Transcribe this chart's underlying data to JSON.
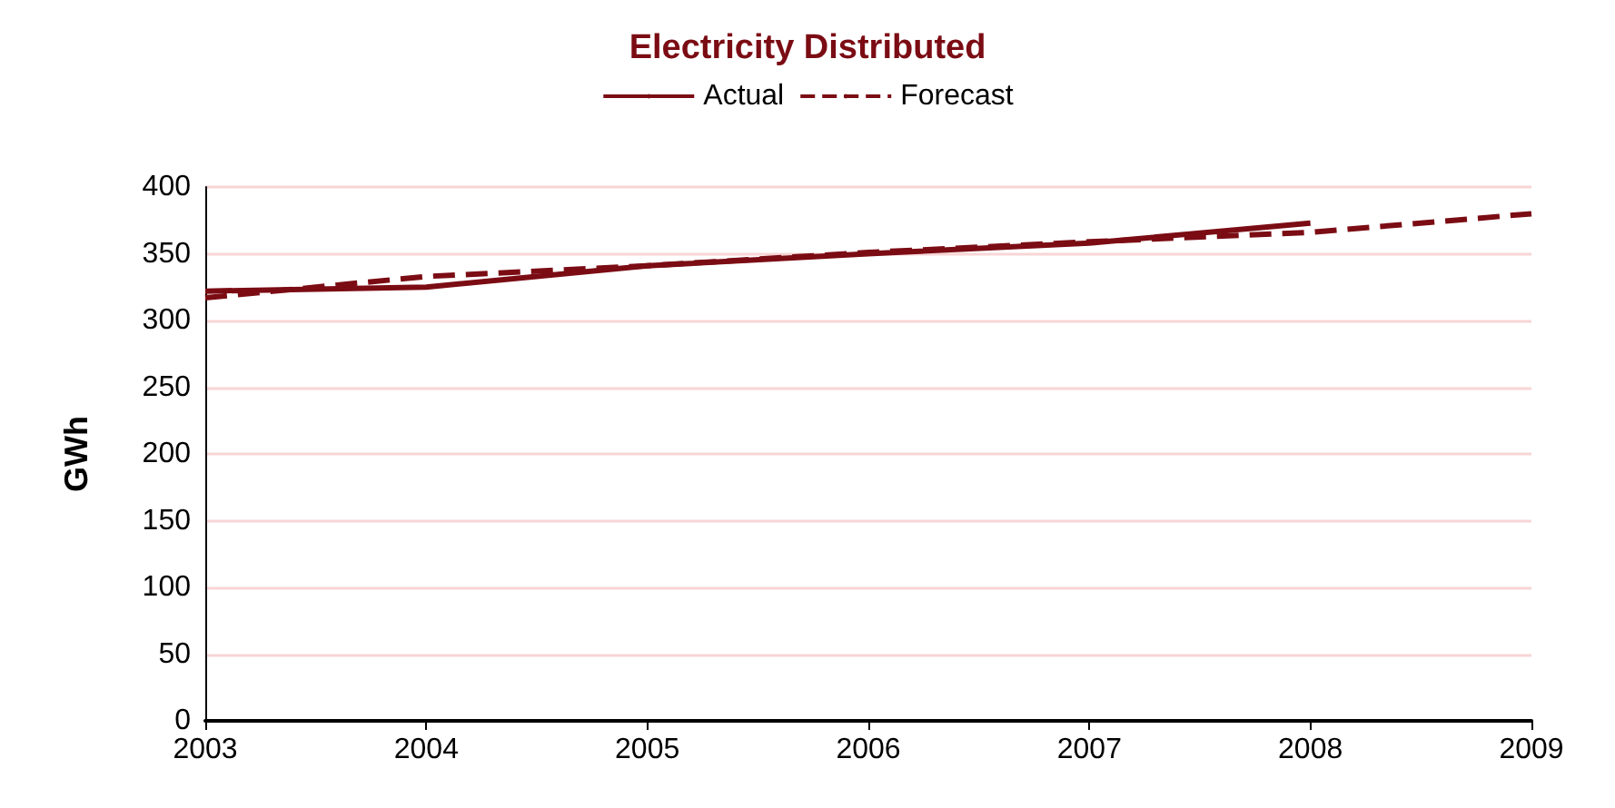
{
  "chart_data": {
    "type": "line",
    "title": "Electricity Distributed",
    "ylabel": "GWh",
    "x": [
      2003,
      2004,
      2005,
      2006,
      2007,
      2008
    ],
    "series": [
      {
        "name": "Actual",
        "color": "#7b0c14",
        "line_style": "solid",
        "values": [
          322,
          325,
          341,
          350,
          358,
          373
        ]
      },
      {
        "name": "Forecast",
        "color": "#7b0c14",
        "line_style": "dashed",
        "x": [
          2003,
          2004,
          2005,
          2006,
          2007,
          2008,
          2009
        ],
        "values": [
          317,
          333,
          341,
          351,
          359,
          366,
          380
        ]
      }
    ],
    "xlim": [
      2003,
      2009
    ],
    "xticks": [
      2003,
      2004,
      2005,
      2006,
      2007,
      2008,
      2009
    ],
    "ylim": [
      0,
      400
    ],
    "yticks": [
      0,
      50,
      100,
      150,
      200,
      250,
      300,
      350,
      400
    ],
    "grid": "y",
    "legend": "top",
    "marker": "none"
  }
}
